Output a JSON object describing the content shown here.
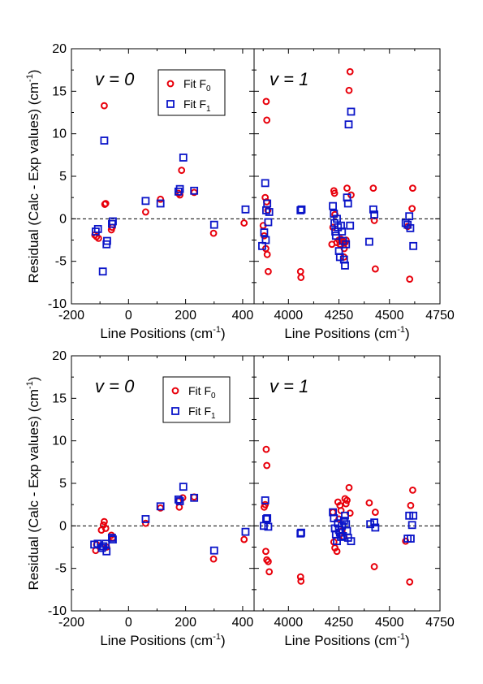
{
  "figure": {
    "ylabel": "Residual (Calc - Exp values) (cm",
    "ylabel_sup": "-1",
    "ylabel_end": ")",
    "xlabel": "Line Positions (cm",
    "xlabel_sup": "-1",
    "xlabel_end": ")"
  },
  "colors": {
    "F0": "#e8000b",
    "F1": "#0a14c8",
    "axis": "#000000"
  },
  "legend": {
    "entries": [
      {
        "key": "F0",
        "text": "Fit F",
        "sub": "0",
        "marker": "circle"
      },
      {
        "key": "F1",
        "text": "Fit F",
        "sub": "1",
        "marker": "square"
      }
    ]
  },
  "chart_data": [
    {
      "type": "scatter",
      "title": "v = 0",
      "row": "top",
      "panel": "left",
      "xlim": [
        -200,
        440
      ],
      "ylim": [
        -10,
        20
      ],
      "xticks": [
        -200,
        0,
        200,
        400
      ],
      "yticks": [
        -10,
        -5,
        0,
        5,
        10,
        15,
        20
      ],
      "legend_position": "top-right",
      "zero_line": "dashed",
      "series": [
        {
          "name": "Fit F0",
          "marker": "circle",
          "points": [
            [
              -85,
              13.3
            ],
            [
              -83,
              1.7
            ],
            [
              -80,
              1.8
            ],
            [
              -118,
              -1.9
            ],
            [
              -112,
              -2.1
            ],
            [
              -105,
              -2.3
            ],
            [
              -60,
              -1.3
            ],
            [
              -57,
              -1.0
            ],
            [
              60,
              0.8
            ],
            [
              112,
              2.3
            ],
            [
              175,
              3.0
            ],
            [
              180,
              2.8
            ],
            [
              186,
              5.7
            ],
            [
              230,
              3.1
            ],
            [
              298,
              -1.7
            ],
            [
              405,
              -0.5
            ]
          ]
        },
        {
          "name": "Fit F1",
          "marker": "square",
          "points": [
            [
              -85,
              9.2
            ],
            [
              -90,
              -6.2
            ],
            [
              -115,
              -1.5
            ],
            [
              -107,
              -1.2
            ],
            [
              -77,
              -3.0
            ],
            [
              -75,
              -2.6
            ],
            [
              -58,
              -0.6
            ],
            [
              -55,
              -0.3
            ],
            [
              60,
              2.1
            ],
            [
              112,
              1.8
            ],
            [
              175,
              3.2
            ],
            [
              180,
              3.5
            ],
            [
              192,
              7.2
            ],
            [
              230,
              3.3
            ],
            [
              300,
              -0.7
            ],
            [
              410,
              1.1
            ]
          ]
        }
      ]
    },
    {
      "type": "scatter",
      "title": "v = 1",
      "row": "top",
      "panel": "right",
      "xlim": [
        3830,
        4750
      ],
      "ylim": [
        -10,
        20
      ],
      "xticks": [
        4000,
        4250,
        4500,
        4750
      ],
      "yticks": [
        -10,
        -5,
        0,
        5,
        10,
        15,
        20
      ],
      "zero_line": "dashed",
      "series": [
        {
          "name": "Fit F0",
          "marker": "circle",
          "points": [
            [
              3890,
              13.8
            ],
            [
              3893,
              11.6
            ],
            [
              3885,
              2.5
            ],
            [
              3892,
              2.0
            ],
            [
              3898,
              1.0
            ],
            [
              3875,
              -0.8
            ],
            [
              3880,
              -2.0
            ],
            [
              3888,
              -3.5
            ],
            [
              3895,
              -4.2
            ],
            [
              3900,
              -6.2
            ],
            [
              4060,
              -6.2
            ],
            [
              4062,
              -6.9
            ],
            [
              4225,
              3.3
            ],
            [
              4228,
              3.0
            ],
            [
              4230,
              0.5
            ],
            [
              4220,
              -1.0
            ],
            [
              4215,
              -3.0
            ],
            [
              4240,
              -2.8
            ],
            [
              4250,
              -2.5
            ],
            [
              4255,
              -3.0
            ],
            [
              4260,
              -2.4
            ],
            [
              4268,
              -2.6
            ],
            [
              4272,
              -2.8
            ],
            [
              4276,
              -3.5
            ],
            [
              4280,
              -2.8
            ],
            [
              4285,
              -2.5
            ],
            [
              4275,
              -4.5
            ],
            [
              4290,
              3.6
            ],
            [
              4300,
              15.1
            ],
            [
              4305,
              17.3
            ],
            [
              4310,
              2.8
            ],
            [
              4420,
              3.6
            ],
            [
              4425,
              -0.2
            ],
            [
              4430,
              -5.9
            ],
            [
              4600,
              -7.1
            ],
            [
              4615,
              3.6
            ],
            [
              4612,
              1.2
            ],
            [
              4590,
              -0.9
            ]
          ]
        },
        {
          "name": "Fit F1",
          "marker": "square",
          "points": [
            [
              3880,
              -1.6
            ],
            [
              3885,
              4.2
            ],
            [
              3890,
              1.0
            ],
            [
              3895,
              1.8
            ],
            [
              3870,
              -3.2
            ],
            [
              3888,
              -2.5
            ],
            [
              3900,
              -0.4
            ],
            [
              3905,
              0.8
            ],
            [
              4060,
              1.0
            ],
            [
              4065,
              1.1
            ],
            [
              4220,
              1.5
            ],
            [
              4225,
              0.6
            ],
            [
              4228,
              -0.5
            ],
            [
              4232,
              -1.5
            ],
            [
              4235,
              -2.0
            ],
            [
              4240,
              0.0
            ],
            [
              4245,
              -1.0
            ],
            [
              4250,
              -3.8
            ],
            [
              4255,
              -4.5
            ],
            [
              4260,
              -0.8
            ],
            [
              4265,
              -1.5
            ],
            [
              4270,
              -2.6
            ],
            [
              4275,
              -4.8
            ],
            [
              4280,
              -5.5
            ],
            [
              4285,
              -3.0
            ],
            [
              4290,
              2.5
            ],
            [
              4295,
              1.8
            ],
            [
              4298,
              11.1
            ],
            [
              4310,
              12.6
            ],
            [
              4305,
              -0.8
            ],
            [
              4400,
              -2.7
            ],
            [
              4420,
              1.1
            ],
            [
              4425,
              0.5
            ],
            [
              4580,
              -0.5
            ],
            [
              4590,
              -0.7
            ],
            [
              4598,
              0.3
            ],
            [
              4603,
              -1.1
            ],
            [
              4618,
              -3.2
            ]
          ]
        }
      ]
    },
    {
      "type": "scatter",
      "title": "v = 0",
      "row": "bottom",
      "panel": "left",
      "xlim": [
        -200,
        440
      ],
      "ylim": [
        -10,
        20
      ],
      "xticks": [
        -200,
        0,
        200,
        400
      ],
      "yticks": [
        -10,
        -5,
        0,
        5,
        10,
        15,
        20
      ],
      "legend_position": "top-right",
      "zero_line": "dashed",
      "series": [
        {
          "name": "Fit F0",
          "marker": "circle",
          "points": [
            [
              -115,
              -2.9
            ],
            [
              -112,
              -2.2
            ],
            [
              -95,
              -0.5
            ],
            [
              -88,
              0.1
            ],
            [
              -85,
              0.5
            ],
            [
              -80,
              -0.3
            ],
            [
              -77,
              -2.5
            ],
            [
              -60,
              -1.1
            ],
            [
              -55,
              -1.4
            ],
            [
              60,
              0.3
            ],
            [
              112,
              2.1
            ],
            [
              175,
              2.9
            ],
            [
              178,
              2.2
            ],
            [
              190,
              3.3
            ],
            [
              230,
              3.4
            ],
            [
              298,
              -3.9
            ],
            [
              405,
              -1.6
            ]
          ]
        },
        {
          "name": "Fit F1",
          "marker": "square",
          "points": [
            [
              -120,
              -2.2
            ],
            [
              -108,
              -2.1
            ],
            [
              -93,
              -2.6
            ],
            [
              -88,
              -2.4
            ],
            [
              -80,
              -2.1
            ],
            [
              -77,
              -3.0
            ],
            [
              -58,
              -1.4
            ],
            [
              -55,
              -1.6
            ],
            [
              60,
              0.8
            ],
            [
              112,
              2.3
            ],
            [
              175,
              3.1
            ],
            [
              180,
              2.9
            ],
            [
              192,
              4.6
            ],
            [
              230,
              3.3
            ],
            [
              300,
              -2.9
            ],
            [
              410,
              -0.7
            ]
          ]
        }
      ]
    },
    {
      "type": "scatter",
      "title": "v = 1",
      "row": "bottom",
      "panel": "right",
      "xlim": [
        3830,
        4750
      ],
      "ylim": [
        -10,
        20
      ],
      "xticks": [
        4000,
        4250,
        4500,
        4750
      ],
      "yticks": [
        -10,
        -5,
        0,
        5,
        10,
        15,
        20
      ],
      "zero_line": "dashed",
      "series": [
        {
          "name": "Fit F0",
          "marker": "circle",
          "points": [
            [
              3890,
              9.0
            ],
            [
              3893,
              7.1
            ],
            [
              3885,
              2.5
            ],
            [
              3880,
              2.2
            ],
            [
              3888,
              -3.0
            ],
            [
              3893,
              -4.0
            ],
            [
              3900,
              -4.2
            ],
            [
              3905,
              -5.4
            ],
            [
              4060,
              -6.0
            ],
            [
              4062,
              -6.5
            ],
            [
              4220,
              1.6
            ],
            [
              4225,
              -1.9
            ],
            [
              4230,
              -2.6
            ],
            [
              4240,
              -3.0
            ],
            [
              4245,
              2.8
            ],
            [
              4250,
              0.8
            ],
            [
              4255,
              2.4
            ],
            [
              4260,
              1.8
            ],
            [
              4265,
              -0.6
            ],
            [
              4275,
              -1.3
            ],
            [
              4280,
              3.2
            ],
            [
              4285,
              2.6
            ],
            [
              4290,
              3.0
            ],
            [
              4300,
              4.5
            ],
            [
              4305,
              1.5
            ],
            [
              4400,
              2.7
            ],
            [
              4425,
              -4.8
            ],
            [
              4430,
              1.6
            ],
            [
              4580,
              -1.8
            ],
            [
              4600,
              -6.6
            ],
            [
              4605,
              2.4
            ],
            [
              4615,
              4.2
            ]
          ]
        },
        {
          "name": "Fit F1",
          "marker": "square",
          "points": [
            [
              3878,
              0.0
            ],
            [
              3885,
              3.0
            ],
            [
              3890,
              0.8
            ],
            [
              3895,
              0.9
            ],
            [
              3900,
              -0.1
            ],
            [
              4060,
              -0.9
            ],
            [
              4063,
              -0.8
            ],
            [
              4220,
              1.6
            ],
            [
              4225,
              0.9
            ],
            [
              4230,
              -0.3
            ],
            [
              4235,
              -1.0
            ],
            [
              4240,
              -1.8
            ],
            [
              4245,
              0.3
            ],
            [
              4250,
              -0.5
            ],
            [
              4255,
              -0.8
            ],
            [
              4260,
              -1.3
            ],
            [
              4265,
              0.0
            ],
            [
              4270,
              -1.2
            ],
            [
              4275,
              0.6
            ],
            [
              4280,
              1.2
            ],
            [
              4285,
              0.2
            ],
            [
              4290,
              -0.6
            ],
            [
              4295,
              -1.4
            ],
            [
              4310,
              -1.8
            ],
            [
              4405,
              0.2
            ],
            [
              4425,
              0.4
            ],
            [
              4430,
              -0.2
            ],
            [
              4590,
              -1.5
            ],
            [
              4598,
              1.2
            ],
            [
              4605,
              -1.5
            ],
            [
              4612,
              0.1
            ],
            [
              4618,
              1.2
            ]
          ]
        }
      ]
    }
  ]
}
